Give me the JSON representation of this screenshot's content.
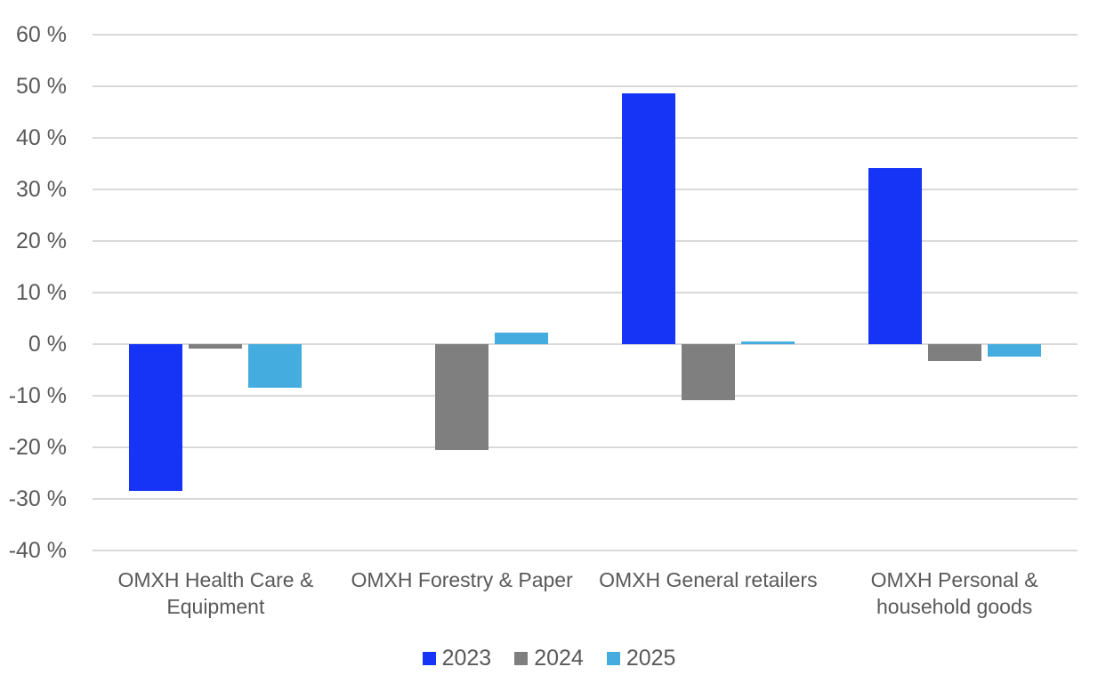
{
  "chart_data": {
    "type": "bar",
    "title": "",
    "xlabel": "",
    "ylabel": "",
    "categories": [
      "OMXH Health Care & Equipment",
      "OMXH Forestry & Paper",
      "OMXH General retailers",
      "OMXH Personal & household goods"
    ],
    "category_label_lines": [
      [
        "OMXH Health Care &",
        "Equipment"
      ],
      [
        "OMXH Forestry & Paper"
      ],
      [
        "OMXH General retailers"
      ],
      [
        "OMXH Personal &",
        "household goods"
      ]
    ],
    "series": [
      {
        "name": "2023",
        "color": "#1534f6",
        "values": [
          -28.5,
          0,
          48.7,
          34.1
        ]
      },
      {
        "name": "2024",
        "color": "#7f7f7f",
        "values": [
          -0.8,
          -20.5,
          -10.9,
          -3.2
        ]
      },
      {
        "name": "2025",
        "color": "#45acdf",
        "values": [
          -8.4,
          2.3,
          0.5,
          -2.4
        ]
      }
    ],
    "y_axis": {
      "ylim": [
        -40,
        60
      ],
      "tick_step": 10,
      "ticks": [
        {
          "value": 60,
          "label": "60 %"
        },
        {
          "value": 50,
          "label": "50 %"
        },
        {
          "value": 40,
          "label": "40 %"
        },
        {
          "value": 30,
          "label": "30 %"
        },
        {
          "value": 20,
          "label": "20 %"
        },
        {
          "value": 10,
          "label": "10 %"
        },
        {
          "value": 0,
          "label": "0 %"
        },
        {
          "value": -10,
          "label": "-10 %"
        },
        {
          "value": -20,
          "label": "-20 %"
        },
        {
          "value": -30,
          "label": "-30 %"
        },
        {
          "value": -40,
          "label": "-40 %"
        }
      ]
    },
    "legend": {
      "position": "bottom",
      "items": [
        "2023",
        "2024",
        "2025"
      ]
    },
    "grid": true,
    "colors": {
      "gridline": "#d9d9d9",
      "axis_text": "#595959",
      "background": "#ffffff"
    }
  }
}
